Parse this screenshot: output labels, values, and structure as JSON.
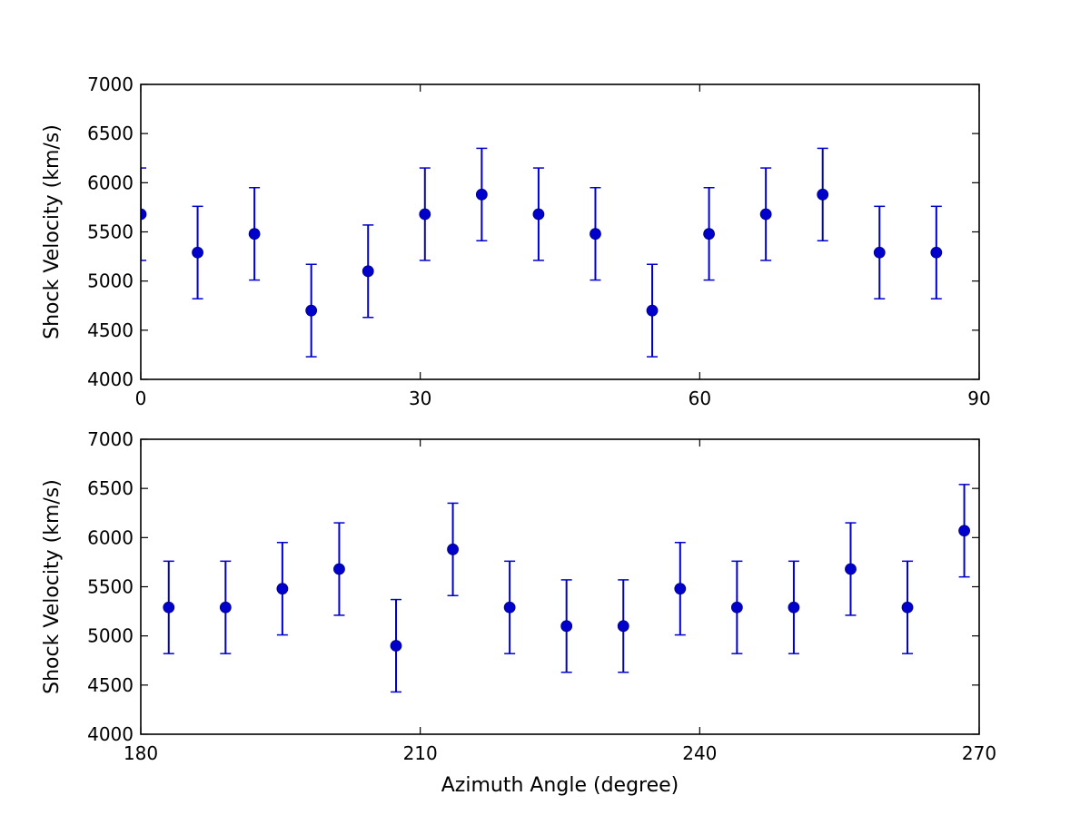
{
  "chart_data": [
    {
      "type": "scatter",
      "error_bars": true,
      "title": "",
      "xlabel": "",
      "ylabel": "Shock Velocity (km/s)",
      "xlim": [
        0,
        90
      ],
      "ylim": [
        4000,
        7000
      ],
      "xticks": [
        0,
        30,
        60,
        90
      ],
      "yticks": [
        4000,
        4500,
        5000,
        5500,
        6000,
        6500,
        7000
      ],
      "x_tick_labels": [
        "0",
        "30",
        "60",
        "90"
      ],
      "y_tick_labels": [
        "4000",
        "4500",
        "5000",
        "5500",
        "6000",
        "6500",
        "7000"
      ],
      "grid": false,
      "color": "#0000cc",
      "series": [
        {
          "x": [
            0,
            6.1,
            12.2,
            18.3,
            24.4,
            30.5,
            36.6,
            42.7,
            48.8,
            54.9,
            61.0,
            67.1,
            73.2,
            79.3,
            85.4
          ],
          "y": [
            5680,
            5290,
            5480,
            4700,
            5100,
            5680,
            5880,
            5680,
            5480,
            4700,
            5480,
            5680,
            5880,
            5290,
            5290
          ],
          "yerr": [
            470,
            470,
            470,
            470,
            470,
            470,
            470,
            470,
            470,
            470,
            470,
            470,
            470,
            470,
            470
          ]
        }
      ]
    },
    {
      "type": "scatter",
      "error_bars": true,
      "title": "",
      "xlabel": "Azimuth Angle (degree)",
      "ylabel": "Shock Velocity (km/s)",
      "xlim": [
        180,
        270
      ],
      "ylim": [
        4000,
        7000
      ],
      "xticks": [
        180,
        210,
        240,
        270
      ],
      "yticks": [
        4000,
        4500,
        5000,
        5500,
        6000,
        6500,
        7000
      ],
      "x_tick_labels": [
        "180",
        "210",
        "240",
        "270"
      ],
      "y_tick_labels": [
        "4000",
        "4500",
        "5000",
        "5500",
        "6000",
        "6500",
        "7000"
      ],
      "grid": false,
      "color": "#0000cc",
      "series": [
        {
          "x": [
            183.0,
            189.1,
            195.2,
            201.3,
            207.4,
            213.5,
            219.6,
            225.7,
            231.8,
            237.9,
            244.0,
            250.1,
            256.2,
            262.3,
            268.4
          ],
          "y": [
            5290,
            5290,
            5480,
            5680,
            4900,
            5880,
            5290,
            5100,
            5100,
            5480,
            5290,
            5290,
            5680,
            5290,
            6070
          ],
          "yerr": [
            470,
            470,
            470,
            470,
            470,
            470,
            470,
            470,
            470,
            470,
            470,
            470,
            470,
            470,
            470
          ]
        }
      ]
    }
  ]
}
